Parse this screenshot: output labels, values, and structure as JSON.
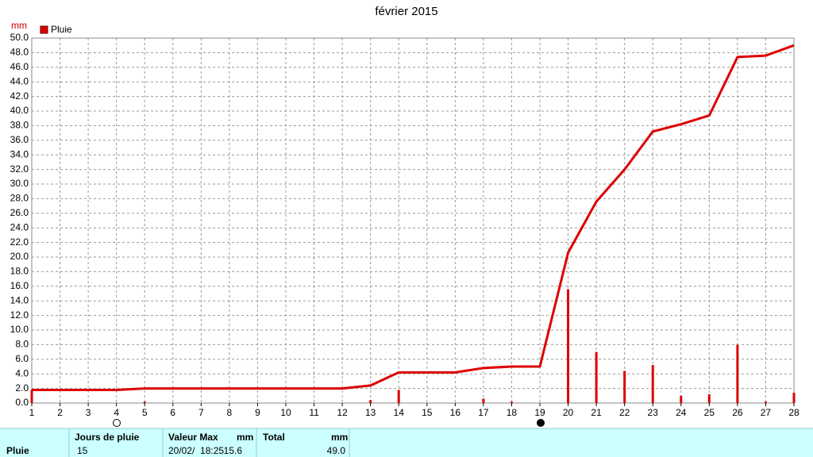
{
  "chart_data": {
    "type": "bar-line",
    "title": "février 2015",
    "y_label": "mm",
    "legend": "top-left",
    "grid": true,
    "x": [
      1,
      2,
      3,
      4,
      5,
      6,
      7,
      8,
      9,
      10,
      11,
      12,
      13,
      14,
      15,
      16,
      17,
      18,
      19,
      20,
      21,
      22,
      23,
      24,
      25,
      26,
      27,
      28
    ],
    "series": [
      {
        "name": "Pluie",
        "type": "bar",
        "color": "#dd0000",
        "values": [
          1.8,
          0,
          0,
          0,
          0.2,
          0,
          0,
          0,
          0,
          0,
          0,
          0,
          0.4,
          1.8,
          0,
          0,
          0.6,
          0.2,
          0,
          15.6,
          7.0,
          4.4,
          5.2,
          1.0,
          1.2,
          8.0,
          0.2,
          1.4
        ]
      },
      {
        "type": "line",
        "color": "#dd0000",
        "values": [
          1.8,
          1.8,
          1.8,
          1.8,
          2.0,
          2.0,
          2.0,
          2.0,
          2.0,
          2.0,
          2.0,
          2.0,
          2.4,
          4.2,
          4.2,
          4.2,
          4.8,
          5.0,
          5.0,
          20.6,
          27.6,
          32.0,
          37.2,
          38.2,
          39.4,
          47.4,
          47.6,
          49.0
        ]
      }
    ],
    "xlim": [
      1,
      28
    ],
    "xticks": [
      1,
      2,
      3,
      4,
      5,
      6,
      7,
      8,
      9,
      10,
      11,
      12,
      13,
      14,
      15,
      16,
      17,
      18,
      19,
      20,
      21,
      22,
      23,
      24,
      25,
      26,
      27,
      28
    ],
    "ylim": [
      0,
      50
    ],
    "yticks": [
      {
        "value": 0,
        "label": "0.0"
      },
      {
        "value": 2,
        "label": "2.0"
      },
      {
        "value": 4,
        "label": "4.0"
      },
      {
        "value": 6,
        "label": "6.0"
      },
      {
        "value": 8,
        "label": "8.0"
      },
      {
        "value": 10,
        "label": "10.0"
      },
      {
        "value": 12,
        "label": "12.0"
      },
      {
        "value": 14,
        "label": "14.0"
      },
      {
        "value": 16,
        "label": "16.0"
      },
      {
        "value": 18,
        "label": "18.0"
      },
      {
        "value": 20,
        "label": "20.0"
      },
      {
        "value": 22,
        "label": "22.0"
      },
      {
        "value": 24,
        "label": "24.0"
      },
      {
        "value": 26,
        "label": "26.0"
      },
      {
        "value": 28,
        "label": "28.0"
      },
      {
        "value": 30,
        "label": "30.0"
      },
      {
        "value": 32,
        "label": "32.0"
      },
      {
        "value": 34,
        "label": "34.0"
      },
      {
        "value": 36,
        "label": "36.0"
      },
      {
        "value": 38,
        "label": "38.0"
      },
      {
        "value": 40,
        "label": "40.0"
      },
      {
        "value": 42,
        "label": "42.0"
      },
      {
        "value": 44,
        "label": "44.0"
      },
      {
        "value": 46,
        "label": "46.0"
      },
      {
        "value": 48,
        "label": "48.0"
      },
      {
        "value": 50,
        "label": "50.0"
      }
    ]
  },
  "table": {
    "header": [
      "Jours de pluie",
      "Valeur Max",
      "mm",
      "Total",
      "mm"
    ],
    "row": [
      "Pluie",
      "15",
      "20/02/  18:25",
      "15.6",
      "49.0"
    ]
  }
}
